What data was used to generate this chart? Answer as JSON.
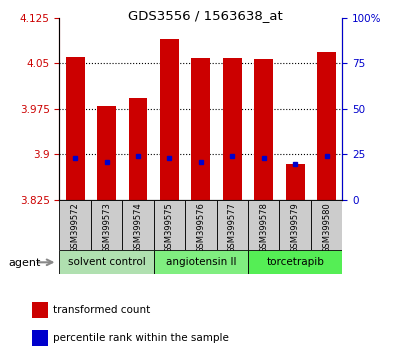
{
  "title": "GDS3556 / 1563638_at",
  "samples": [
    "GSM399572",
    "GSM399573",
    "GSM399574",
    "GSM399575",
    "GSM399576",
    "GSM399577",
    "GSM399578",
    "GSM399579",
    "GSM399580"
  ],
  "transformed_count": [
    4.06,
    3.98,
    3.993,
    4.09,
    4.058,
    4.059,
    4.057,
    3.885,
    4.068
  ],
  "percentile_rank": [
    23,
    21,
    24,
    23,
    21,
    24,
    23,
    20,
    24
  ],
  "ylim_left": [
    3.825,
    4.125
  ],
  "yticks_left": [
    3.825,
    3.9,
    3.975,
    4.05,
    4.125
  ],
  "yticks_right": [
    0,
    25,
    50,
    75,
    100
  ],
  "bar_color": "#cc0000",
  "dot_color": "#0000cc",
  "baseline": 3.825,
  "groups": [
    {
      "label": "solvent control",
      "indices": [
        0,
        1,
        2
      ],
      "color": "#b0e0b0"
    },
    {
      "label": "angiotensin II",
      "indices": [
        3,
        4,
        5
      ],
      "color": "#80ee80"
    },
    {
      "label": "torcetrapib",
      "indices": [
        6,
        7,
        8
      ],
      "color": "#55ee55"
    }
  ],
  "agent_label": "agent",
  "legend_items": [
    {
      "label": "transformed count",
      "color": "#cc0000"
    },
    {
      "label": "percentile rank within the sample",
      "color": "#0000cc"
    }
  ],
  "tick_color_left": "#cc0000",
  "tick_color_right": "#0000cc",
  "xlabel_bg": "#cccccc",
  "bar_width": 0.6
}
